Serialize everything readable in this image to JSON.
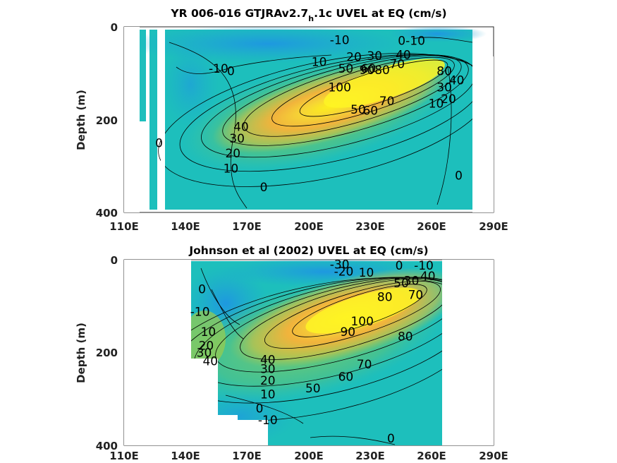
{
  "chart_data": [
    {
      "type": "heatmap",
      "title_pre": "YR 006-016 GTJRAv2.7",
      "title_sub": "h",
      "title_post": ".1c UVEL at EQ (cm/s)",
      "xlabel": "",
      "ylabel": "Depth (m)",
      "xlim": [
        110,
        290
      ],
      "ylim": [
        400,
        0
      ],
      "xticks": [
        "110E",
        "140E",
        "170E",
        "200E",
        "230E",
        "260E",
        "290E"
      ],
      "yticks": [
        "0",
        "200",
        "400"
      ],
      "contour_labels": [
        {
          "x": 250,
          "y": 30,
          "text": "0-10"
        },
        {
          "x": 215,
          "y": 28,
          "text": "-10"
        },
        {
          "x": 222,
          "y": 65,
          "text": "20"
        },
        {
          "x": 232,
          "y": 62,
          "text": "30"
        },
        {
          "x": 246,
          "y": 60,
          "text": "40"
        },
        {
          "x": 205,
          "y": 75,
          "text": "10"
        },
        {
          "x": 218,
          "y": 90,
          "text": "50"
        },
        {
          "x": 229,
          "y": 90,
          "text": "60"
        },
        {
          "x": 232,
          "y": 93,
          "text": "9080"
        },
        {
          "x": 243,
          "y": 80,
          "text": "70"
        },
        {
          "x": 215,
          "y": 130,
          "text": "100"
        },
        {
          "x": 224,
          "y": 178,
          "text": "50"
        },
        {
          "x": 230,
          "y": 180,
          "text": "60"
        },
        {
          "x": 238,
          "y": 160,
          "text": "70"
        },
        {
          "x": 266,
          "y": 95,
          "text": "80"
        },
        {
          "x": 266,
          "y": 130,
          "text": "30"
        },
        {
          "x": 268,
          "y": 155,
          "text": "20"
        },
        {
          "x": 262,
          "y": 165,
          "text": "10"
        },
        {
          "x": 272,
          "y": 115,
          "text": "40"
        },
        {
          "x": 156,
          "y": 90,
          "text": "-10"
        },
        {
          "x": 162,
          "y": 95,
          "text": "0"
        },
        {
          "x": 127,
          "y": 250,
          "text": "0"
        },
        {
          "x": 167,
          "y": 215,
          "text": "40"
        },
        {
          "x": 165,
          "y": 240,
          "text": "30"
        },
        {
          "x": 163,
          "y": 272,
          "text": "20"
        },
        {
          "x": 162,
          "y": 305,
          "text": "10"
        },
        {
          "x": 178,
          "y": 345,
          "text": "0"
        },
        {
          "x": 273,
          "y": 320,
          "text": "0"
        }
      ]
    },
    {
      "type": "heatmap",
      "title": "Johnson et al (2002) UVEL at EQ (cm/s)",
      "xlabel": "",
      "ylabel": "Depth (m)",
      "xlim": [
        110,
        290
      ],
      "ylim": [
        400,
        0
      ],
      "xticks": [
        "110E",
        "140E",
        "170E",
        "200E",
        "230E",
        "260E",
        "290E"
      ],
      "yticks": [
        "0",
        "200",
        "400"
      ],
      "contour_labels": [
        {
          "x": 215,
          "y": 10,
          "text": "-30"
        },
        {
          "x": 217,
          "y": 25,
          "text": "-20"
        },
        {
          "x": 228,
          "y": 27,
          "text": "10"
        },
        {
          "x": 244,
          "y": 12,
          "text": "0"
        },
        {
          "x": 256,
          "y": 12,
          "text": "-10"
        },
        {
          "x": 245,
          "y": 50,
          "text": "50"
        },
        {
          "x": 250,
          "y": 45,
          "text": "30"
        },
        {
          "x": 258,
          "y": 35,
          "text": "40"
        },
        {
          "x": 237,
          "y": 80,
          "text": "80"
        },
        {
          "x": 252,
          "y": 75,
          "text": "70"
        },
        {
          "x": 219,
          "y": 155,
          "text": "90"
        },
        {
          "x": 226,
          "y": 132,
          "text": "100"
        },
        {
          "x": 247,
          "y": 165,
          "text": "80"
        },
        {
          "x": 227,
          "y": 225,
          "text": "70"
        },
        {
          "x": 218,
          "y": 252,
          "text": "60"
        },
        {
          "x": 202,
          "y": 277,
          "text": "50"
        },
        {
          "x": 148,
          "y": 63,
          "text": "0"
        },
        {
          "x": 147,
          "y": 112,
          "text": "-10"
        },
        {
          "x": 151,
          "y": 155,
          "text": "10"
        },
        {
          "x": 150,
          "y": 185,
          "text": "20"
        },
        {
          "x": 149,
          "y": 200,
          "text": "30"
        },
        {
          "x": 152,
          "y": 218,
          "text": "40"
        },
        {
          "x": 180,
          "y": 215,
          "text": "40"
        },
        {
          "x": 180,
          "y": 235,
          "text": "30"
        },
        {
          "x": 180,
          "y": 260,
          "text": "20"
        },
        {
          "x": 180,
          "y": 290,
          "text": "10"
        },
        {
          "x": 176,
          "y": 320,
          "text": "0"
        },
        {
          "x": 180,
          "y": 345,
          "text": "-10"
        },
        {
          "x": 240,
          "y": 385,
          "text": "0"
        }
      ]
    }
  ]
}
